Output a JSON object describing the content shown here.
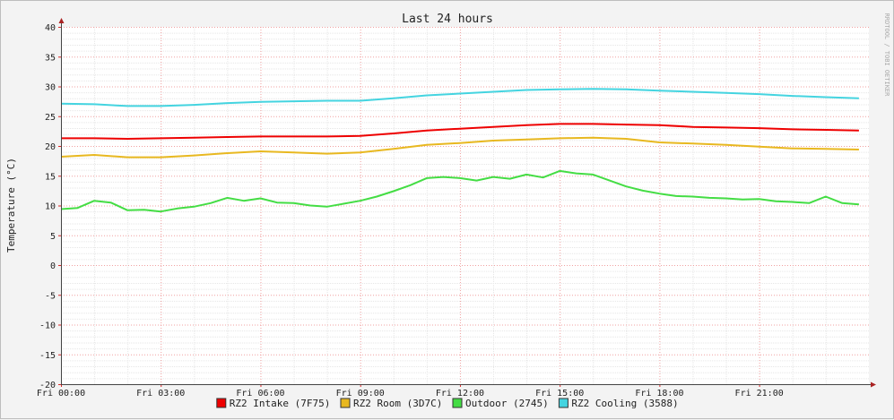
{
  "chart_data": {
    "type": "line",
    "title": "Last 24 hours",
    "ylabel": "Temperature (°C)",
    "watermark": "RRDTOOL / TOBI OETIKER",
    "ylim": [
      -20,
      40
    ],
    "y_ticks": [
      40,
      35,
      30,
      25,
      20,
      15,
      10,
      5,
      0,
      -5,
      -10,
      -15,
      -20
    ],
    "x_hours_range": [
      0,
      24.3
    ],
    "x_ticks": [
      {
        "label": "Fri 00:00",
        "hour": 0
      },
      {
        "label": "Fri 03:00",
        "hour": 3
      },
      {
        "label": "Fri 06:00",
        "hour": 6
      },
      {
        "label": "Fri 09:00",
        "hour": 9
      },
      {
        "label": "Fri 12:00",
        "hour": 12
      },
      {
        "label": "Fri 15:00",
        "hour": 15
      },
      {
        "label": "Fri 18:00",
        "hour": 18
      },
      {
        "label": "Fri 21:00",
        "hour": 21
      }
    ],
    "grid": true,
    "legend_position": "bottom",
    "series": [
      {
        "name": "RZ2 Intake (7F75)",
        "color": "#ee0000",
        "x": [
          0,
          1,
          2,
          3,
          4,
          5,
          6,
          7,
          8,
          9,
          10,
          11,
          12,
          13,
          14,
          15,
          16,
          17,
          18,
          19,
          20,
          21,
          22,
          23,
          24
        ],
        "y": [
          21.3,
          21.3,
          21.2,
          21.3,
          21.4,
          21.5,
          21.6,
          21.6,
          21.6,
          21.7,
          22.1,
          22.6,
          22.9,
          23.2,
          23.5,
          23.7,
          23.7,
          23.6,
          23.5,
          23.2,
          23.1,
          23.0,
          22.8,
          22.7,
          22.6
        ]
      },
      {
        "name": "RZ2 Room (3D7C)",
        "color": "#e8b820",
        "x": [
          0,
          1,
          2,
          3,
          4,
          5,
          6,
          7,
          8,
          9,
          10,
          11,
          12,
          13,
          14,
          15,
          16,
          17,
          18,
          19,
          20,
          21,
          22,
          23,
          24
        ],
        "y": [
          18.2,
          18.5,
          18.1,
          18.1,
          18.4,
          18.8,
          19.1,
          18.9,
          18.7,
          18.9,
          19.5,
          20.2,
          20.5,
          20.9,
          21.1,
          21.3,
          21.4,
          21.2,
          20.6,
          20.4,
          20.2,
          19.9,
          19.6,
          19.5,
          19.4
        ]
      },
      {
        "name": "Outdoor (2745)",
        "color": "#44dd44",
        "x": [
          0,
          0.5,
          1,
          1.5,
          2,
          2.5,
          3,
          3.5,
          4,
          4.5,
          5,
          5.5,
          6,
          6.5,
          7,
          7.5,
          8,
          8.5,
          9,
          9.5,
          10,
          10.5,
          11,
          11.5,
          12,
          12.5,
          13,
          13.5,
          14,
          14.5,
          15,
          15.5,
          16,
          16.5,
          17,
          17.5,
          18,
          18.5,
          19,
          19.5,
          20,
          20.5,
          21,
          21.5,
          22,
          22.5,
          23,
          23.5,
          24
        ],
        "y": [
          9.4,
          9.6,
          10.8,
          10.5,
          9.2,
          9.3,
          9.0,
          9.5,
          9.8,
          10.4,
          11.3,
          10.8,
          11.2,
          10.5,
          10.4,
          10.0,
          9.8,
          10.3,
          10.8,
          11.5,
          12.4,
          13.4,
          14.6,
          14.8,
          14.6,
          14.2,
          14.8,
          14.5,
          15.2,
          14.7,
          15.8,
          15.4,
          15.2,
          14.2,
          13.2,
          12.5,
          12.0,
          11.6,
          11.5,
          11.3,
          11.2,
          11.0,
          11.1,
          10.7,
          10.6,
          10.4,
          11.5,
          10.4,
          10.2
        ]
      },
      {
        "name": "RZ2 Cooling (3588)",
        "color": "#44d4e0",
        "x": [
          0,
          1,
          2,
          3,
          4,
          5,
          6,
          7,
          8,
          9,
          10,
          11,
          12,
          13,
          14,
          15,
          16,
          17,
          18,
          19,
          20,
          21,
          22,
          23,
          24
        ],
        "y": [
          27.1,
          27.0,
          26.7,
          26.7,
          26.9,
          27.2,
          27.4,
          27.5,
          27.6,
          27.6,
          28.0,
          28.5,
          28.8,
          29.1,
          29.4,
          29.5,
          29.6,
          29.5,
          29.3,
          29.1,
          28.9,
          28.7,
          28.4,
          28.2,
          28.0
        ]
      }
    ]
  }
}
